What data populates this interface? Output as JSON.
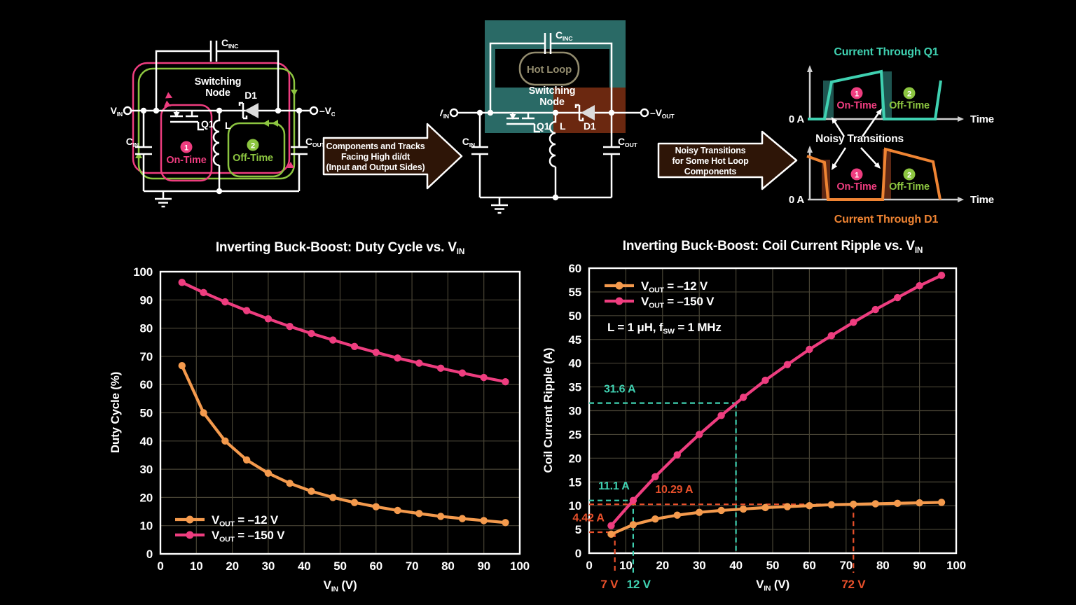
{
  "colors": {
    "background": "#000000",
    "wire": "#ffffff",
    "pink": "#EE3D7F",
    "green": "#8CC540",
    "orange_series": "#F49A4D",
    "wave_teal": "#3FD1B1",
    "wave_orange": "#EF8433",
    "teal_block": "#2A6A66",
    "brown_block": "#6B2810",
    "bar_teal": "#1E5550",
    "bar_brown": "#5E2814",
    "arrow_fill": "#2E1507",
    "tan": "#938C6E",
    "grid": "#474334",
    "annotation_teal": "#3FD1B1",
    "annotation_red": "#E8502B"
  },
  "sym": {
    "v": "V",
    "neg_v": "–V",
    "c": "C",
    "in": "IN",
    "out": "OUT",
    "inc": "INC",
    "l": "L",
    "q1": "Q1",
    "d1": "D1",
    "switching": "Switching",
    "node": "Node",
    "hot_loop": "Hot Loop",
    "one": "1",
    "two": "2",
    "on_time": "On-Time",
    "off_time": "Off-Time"
  },
  "arrows": {
    "a1": {
      "l1": "Components and Tracks",
      "l2": "Facing High di/dt",
      "l3": "(Input and Output Sides)"
    },
    "a2": {
      "l1": "Noisy Transitions",
      "l2": "for Some Hot Loop",
      "l3": "Components"
    }
  },
  "waveforms": {
    "q1_title": "Current Through Q1",
    "d1_title": "Current Through D1",
    "zero": "0 A",
    "time": "Time",
    "noisy": "Noisy Transitions"
  },
  "chart_data": [
    {
      "type": "line",
      "title": "Inverting Buck-Boost: Duty Cycle vs. VIN",
      "title_main": "Inverting Buck-Boost: Duty Cycle vs. V",
      "title_sub": "IN",
      "xlabel_main": "V",
      "xlabel_sub": "IN",
      "xlabel_post": " (V)",
      "ylabel": "Duty Cycle (%)",
      "xlim": [
        0,
        100
      ],
      "xstep": 10,
      "ylim": [
        0,
        100
      ],
      "ystep": 10,
      "grid": true,
      "legend_position": "bottom-left",
      "x": [
        6,
        12,
        18,
        24,
        30,
        36,
        42,
        48,
        54,
        60,
        66,
        72,
        78,
        84,
        90,
        96
      ],
      "series": [
        {
          "name": "VOUT = -12 V",
          "label_main": "V",
          "label_sub": "OUT",
          "label_post": " = –12 V",
          "color": "#F49A4D",
          "values": [
            66.7,
            50.0,
            40.0,
            33.3,
            28.6,
            25.0,
            22.2,
            20.0,
            18.2,
            16.7,
            15.4,
            14.3,
            13.3,
            12.5,
            11.8,
            11.1
          ]
        },
        {
          "name": "VOUT = -150 V",
          "label_main": "V",
          "label_sub": "OUT",
          "label_post": " = –150 V",
          "color": "#EE3D7F",
          "values": [
            96.2,
            92.6,
            89.3,
            86.2,
            83.3,
            80.6,
            78.1,
            75.8,
            73.5,
            71.4,
            69.4,
            67.6,
            65.8,
            64.1,
            62.5,
            61.0
          ]
        }
      ]
    },
    {
      "type": "line",
      "title": "Inverting Buck-Boost: Coil Current Ripple vs. VIN",
      "title_main": "Inverting Buck-Boost: Coil Current Ripple vs. V",
      "title_sub": "IN",
      "xlabel_main": "V",
      "xlabel_sub": "IN",
      "xlabel_post": " (V)",
      "ylabel": "Coil Current Ripple (A)",
      "xlim": [
        0,
        100
      ],
      "xstep": 10,
      "ylim": [
        0,
        60
      ],
      "ystep": 5,
      "grid": true,
      "legend_position": "top-left",
      "note_main": "L = 1 μH, f",
      "note_sub": "SW",
      "note_post": " = 1 MHz",
      "x": [
        6,
        12,
        18,
        24,
        30,
        36,
        42,
        48,
        54,
        60,
        66,
        72,
        78,
        84,
        90,
        96
      ],
      "series": [
        {
          "name": "VOUT = -12 V",
          "label_main": "V",
          "label_sub": "OUT",
          "label_post": " = –12 V",
          "color": "#F49A4D",
          "values": [
            4.0,
            6.0,
            7.2,
            8.0,
            8.6,
            9.0,
            9.3,
            9.6,
            9.8,
            10.0,
            10.2,
            10.3,
            10.4,
            10.5,
            10.6,
            10.7
          ]
        },
        {
          "name": "VOUT = -150 V",
          "label_main": "V",
          "label_sub": "OUT",
          "label_post": " = –150 V",
          "color": "#EE3D7F",
          "values": [
            5.8,
            11.1,
            16.1,
            20.7,
            25.0,
            29.0,
            32.8,
            36.4,
            39.7,
            42.9,
            45.8,
            48.6,
            51.3,
            53.8,
            56.3,
            58.5
          ]
        }
      ],
      "annotations": [
        {
          "label": "31.6 A",
          "x": 40,
          "y": 31.6,
          "color": "#3FD1B1",
          "label_x": 4,
          "label_y": 33.8,
          "extend_below": false
        },
        {
          "label": "11.1 A",
          "x": 12,
          "y": 11.1,
          "color": "#3FD1B1",
          "label_x": 2.5,
          "label_y": 13.4,
          "extend_below": true,
          "below_label": "12 V",
          "below_x": 13.5
        },
        {
          "label": "4.42 A",
          "x": 7,
          "y": 4.42,
          "color": "#E8502B",
          "label_x": -4.5,
          "label_y": 6.7,
          "extend_below": true,
          "below_label": "7 V",
          "below_x": 5.5
        },
        {
          "label": "10.29 A",
          "x": 72,
          "y": 10.29,
          "color": "#E8502B",
          "label_x": 18,
          "label_y": 12.7,
          "extend_below": true,
          "below_label": "72 V",
          "below_x": 72
        }
      ]
    }
  ]
}
